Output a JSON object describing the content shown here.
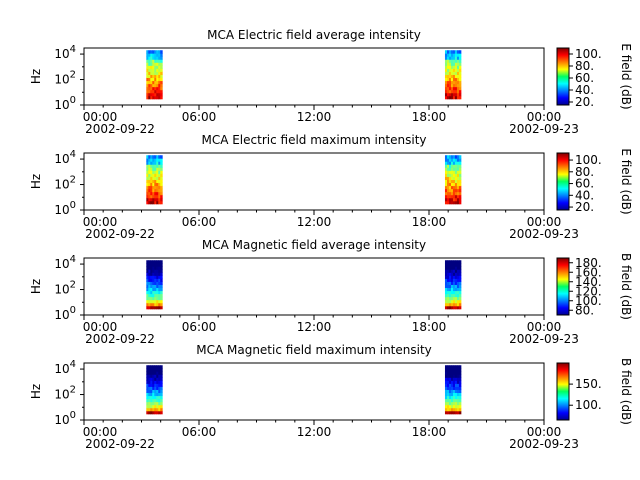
{
  "chart_data": [
    {
      "type": "heatmap",
      "title": "MCA  Electric field average intensity",
      "xlabel": "",
      "ylabel": "Hz",
      "y_scale": "log",
      "ylim": [
        1,
        30000
      ],
      "y_ticks": [
        {
          "base": "10",
          "exp": "0"
        },
        {
          "base": "10",
          "exp": "2"
        },
        {
          "base": "10",
          "exp": "4"
        }
      ],
      "x_ticks": [
        "00:00",
        "06:00",
        "12:00",
        "18:00",
        "00:00"
      ],
      "x_dates": [
        "2002-09-22",
        "2002-09-23"
      ],
      "xlim": [
        "2002-09-22T00:00",
        "2002-09-23T00:00"
      ],
      "data_intervals": [
        [
          "2002-09-22T03:15",
          "2002-09-22T04:05"
        ],
        [
          "2002-09-22T18:50",
          "2002-09-22T19:40"
        ]
      ],
      "colorbar": {
        "label": "E field (dB)",
        "range": [
          15,
          110
        ],
        "ticks": [
          "20.",
          "40.",
          "60.",
          "80.",
          "100."
        ]
      },
      "colormap": "jet",
      "grid": false
    },
    {
      "type": "heatmap",
      "title": "MCA  Electric field maximum intensity",
      "xlabel": "",
      "ylabel": "Hz",
      "y_scale": "log",
      "ylim": [
        1,
        30000
      ],
      "y_ticks": [
        {
          "base": "10",
          "exp": "0"
        },
        {
          "base": "10",
          "exp": "2"
        },
        {
          "base": "10",
          "exp": "4"
        }
      ],
      "x_ticks": [
        "00:00",
        "06:00",
        "12:00",
        "18:00",
        "00:00"
      ],
      "x_dates": [
        "2002-09-22",
        "2002-09-23"
      ],
      "xlim": [
        "2002-09-22T00:00",
        "2002-09-23T00:00"
      ],
      "data_intervals": [
        [
          "2002-09-22T03:15",
          "2002-09-22T04:05"
        ],
        [
          "2002-09-22T18:50",
          "2002-09-22T19:40"
        ]
      ],
      "colorbar": {
        "label": "E field (dB)",
        "range": [
          15,
          112
        ],
        "ticks": [
          "20.",
          "40.",
          "60.",
          "80.",
          "100."
        ]
      },
      "colormap": "jet",
      "grid": false
    },
    {
      "type": "heatmap",
      "title": "MCA  Magnetic field average intensity",
      "xlabel": "",
      "ylabel": "Hz",
      "y_scale": "log",
      "ylim": [
        1,
        30000
      ],
      "y_ticks": [
        {
          "base": "10",
          "exp": "0"
        },
        {
          "base": "10",
          "exp": "2"
        },
        {
          "base": "10",
          "exp": "4"
        }
      ],
      "x_ticks": [
        "00:00",
        "06:00",
        "12:00",
        "18:00",
        "00:00"
      ],
      "x_dates": [
        "2002-09-22",
        "2002-09-23"
      ],
      "xlim": [
        "2002-09-22T00:00",
        "2002-09-23T00:00"
      ],
      "data_intervals": [
        [
          "2002-09-22T03:15",
          "2002-09-22T04:05"
        ],
        [
          "2002-09-22T18:50",
          "2002-09-22T19:40"
        ]
      ],
      "colorbar": {
        "label": "B field (dB)",
        "range": [
          70,
          190
        ],
        "ticks": [
          "80.",
          "100.",
          "120.",
          "140.",
          "160.",
          "180."
        ]
      },
      "colormap": "jet",
      "grid": false
    },
    {
      "type": "heatmap",
      "title": "MCA  Magnetic field maximum intensity",
      "xlabel": "",
      "ylabel": "Hz",
      "y_scale": "log",
      "ylim": [
        1,
        30000
      ],
      "y_ticks": [
        {
          "base": "10",
          "exp": "0"
        },
        {
          "base": "10",
          "exp": "2"
        },
        {
          "base": "10",
          "exp": "4"
        }
      ],
      "x_ticks": [
        "00:00",
        "06:00",
        "12:00",
        "18:00",
        "00:00"
      ],
      "x_dates": [
        "2002-09-22",
        "2002-09-23"
      ],
      "xlim": [
        "2002-09-22T00:00",
        "2002-09-23T00:00"
      ],
      "data_intervals": [
        [
          "2002-09-22T03:15",
          "2002-09-22T04:05"
        ],
        [
          "2002-09-22T18:50",
          "2002-09-22T19:40"
        ]
      ],
      "colorbar": {
        "label": "B field (dB)",
        "range": [
          65,
          200
        ],
        "ticks": [
          "100.",
          "150."
        ]
      },
      "colormap": "jet",
      "grid": false
    }
  ]
}
